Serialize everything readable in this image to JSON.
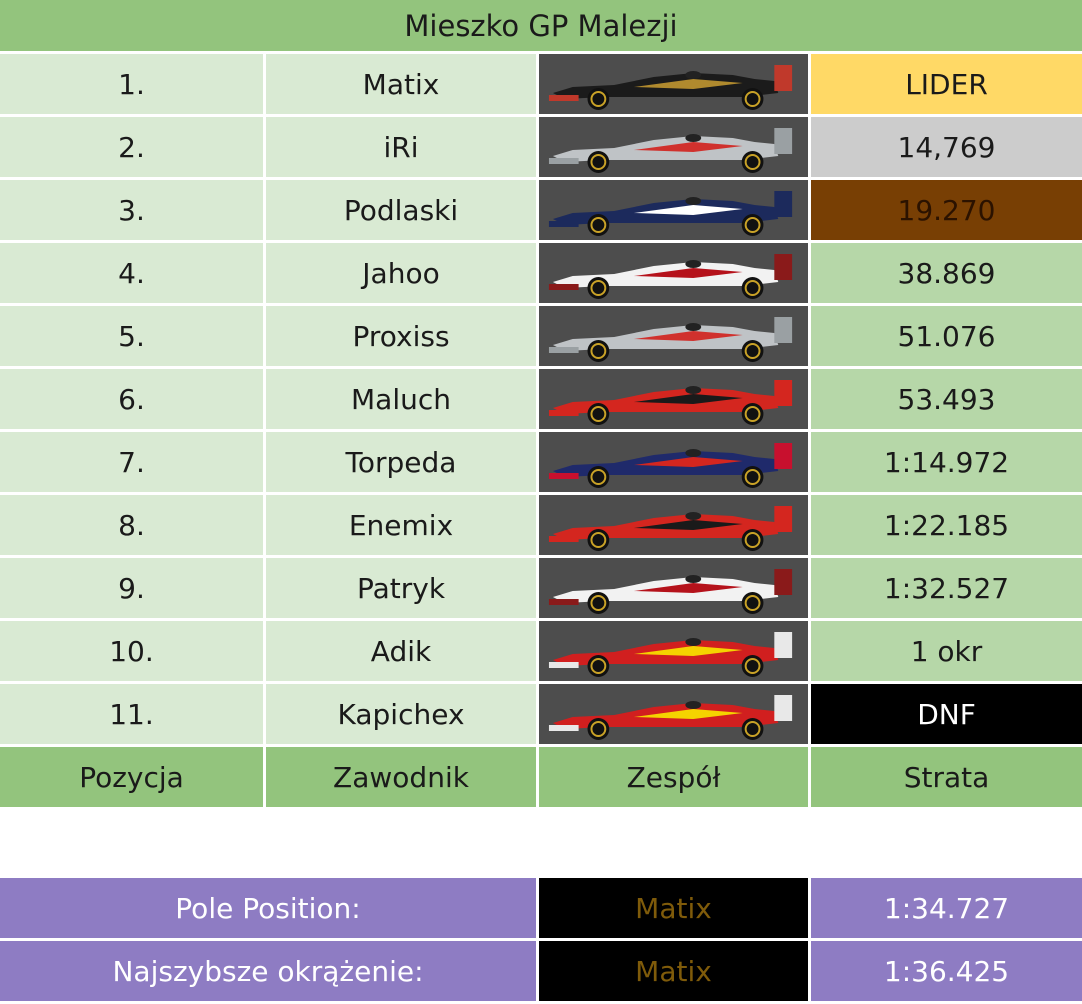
{
  "title": "Mieszko GP Malezji",
  "headers": {
    "position": "Pozycja",
    "driver": "Zawodnik",
    "team": "Zespół",
    "gap": "Strata"
  },
  "rows": [
    {
      "position": "1.",
      "driver": "Matix",
      "team_car": "lotus-car-icon",
      "gap": "LIDER"
    },
    {
      "position": "2.",
      "driver": "iRi",
      "team_car": "mclaren-car-icon",
      "gap": "14,769"
    },
    {
      "position": "3.",
      "driver": "Podlaski",
      "team_car": "williams-car-icon",
      "gap": "19.270"
    },
    {
      "position": "4.",
      "driver": "Jahoo",
      "team_car": "hrt-car-icon",
      "gap": "38.869"
    },
    {
      "position": "5.",
      "driver": "Proxiss",
      "team_car": "mclaren-car-icon",
      "gap": "51.076"
    },
    {
      "position": "6.",
      "driver": "Maluch",
      "team_car": "marussia-car-icon",
      "gap": "53.493"
    },
    {
      "position": "7.",
      "driver": "Torpeda",
      "team_car": "redbull-car-icon",
      "gap": "1:14.972"
    },
    {
      "position": "8.",
      "driver": "Enemix",
      "team_car": "marussia-car-icon",
      "gap": "1:22.185"
    },
    {
      "position": "9.",
      "driver": "Patryk",
      "team_car": "hrt-car-icon",
      "gap": "1:32.527"
    },
    {
      "position": "10.",
      "driver": "Adik",
      "team_car": "ferrari-car-icon",
      "gap": "1 okr"
    },
    {
      "position": "11.",
      "driver": "Kapichex",
      "team_car": "ferrari-car-icon",
      "gap": "DNF"
    }
  ],
  "stats": [
    {
      "label": "Pole Position:",
      "driver": "Matix",
      "time": "1:34.727"
    },
    {
      "label": "Najszybsze okrążenie:",
      "driver": "Matix",
      "time": "1:36.425"
    }
  ],
  "colors": {
    "header_green": "#93c47d",
    "row_light": "#d9ead3",
    "row_mid": "#b6d7a8",
    "gold": "#ffd966",
    "silver": "#cccccc",
    "bronze": "#783f04",
    "stats_purple": "#8e7cc3"
  }
}
